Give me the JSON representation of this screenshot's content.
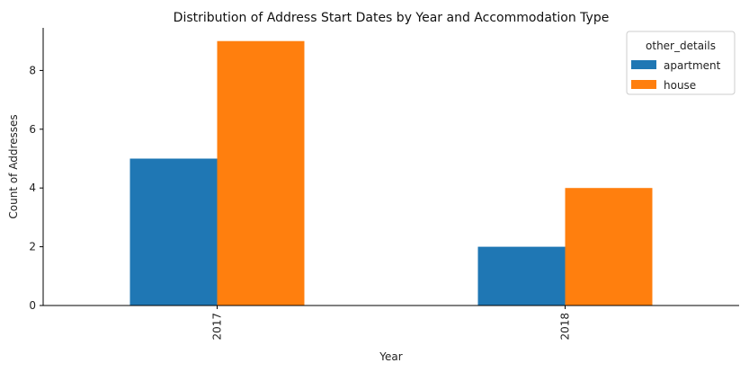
{
  "chart_data": {
    "type": "bar",
    "title": "Distribution of Address Start Dates by Year and Accommodation Type",
    "xlabel": "Year",
    "ylabel": "Count of Addresses",
    "categories": [
      "2017",
      "2018"
    ],
    "series": [
      {
        "name": "apartment",
        "values": [
          5,
          2
        ],
        "color": "#1f77b4"
      },
      {
        "name": "house",
        "values": [
          9,
          4
        ],
        "color": "#ff7f0e"
      }
    ],
    "ylim": [
      0,
      9.45
    ],
    "yticks": [
      0,
      2,
      4,
      6,
      8
    ],
    "legend": {
      "title": "other_details",
      "placement": "top-right"
    },
    "grid": false
  }
}
